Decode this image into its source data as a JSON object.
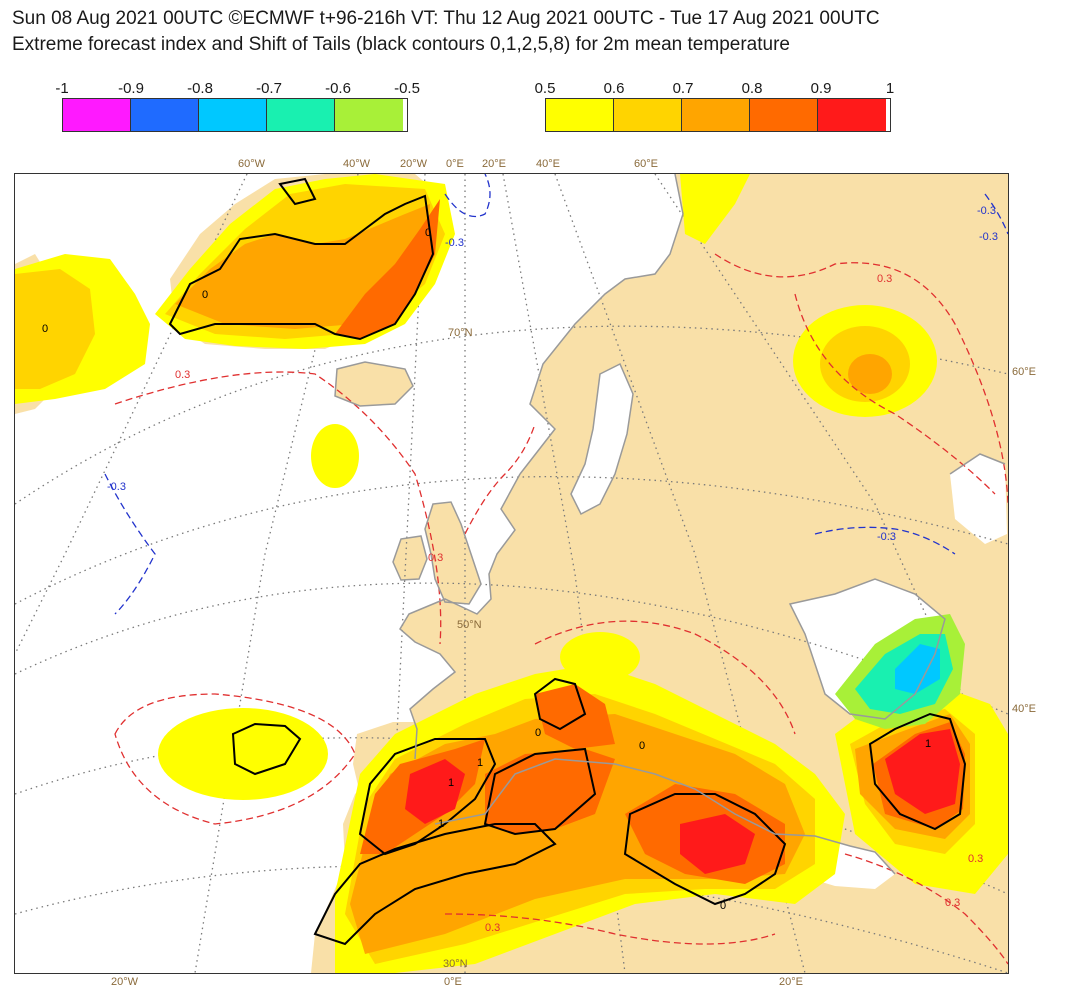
{
  "header": {
    "line1": "Sun 08 Aug 2021 00UTC ©ECMWF t+96-216h  VT: Thu 12 Aug 2021 00UTC - Tue 17 Aug 2021 00UTC",
    "line2": "Extreme forecast index and Shift of Tails (black contours 0,1,2,5,8) for 2m mean temperature"
  },
  "legend_negative": {
    "labels": [
      "-1",
      "-0.9",
      "-0.8",
      "-0.7",
      "-0.6",
      "-0.5"
    ],
    "colors": [
      "#ff19ff",
      "#1f6bff",
      "#00c8ff",
      "#19f0b0",
      "#a8f038"
    ]
  },
  "legend_positive": {
    "labels": [
      "0.5",
      "0.6",
      "0.7",
      "0.8",
      "0.9",
      "1"
    ],
    "colors": [
      "#ffff00",
      "#ffd400",
      "#ffa500",
      "#ff6a00",
      "#ff1a1a"
    ]
  },
  "map": {
    "land_color": "#f9e0a8",
    "top_labels": [
      "60°W",
      "40°W",
      "20°W",
      "0°E",
      "20°E",
      "40°E",
      "60°E"
    ],
    "bottom_labels": [
      "20°W",
      "0°E",
      "20°E"
    ],
    "right_labels": [
      "60°E",
      "40°E"
    ],
    "lat_labels": [
      "70°N",
      "50°N",
      "30°N"
    ],
    "contour_labels": [
      "0",
      "0",
      "0",
      "0",
      "0",
      "0",
      "1",
      "1",
      "1",
      "1"
    ],
    "dashed_labels": [
      "-0.3",
      "-0.3",
      "-0.3",
      "0.3",
      "0.3",
      "0.3",
      "0.3",
      "0.3",
      "0.3",
      "-0.3",
      "-0.3"
    ]
  }
}
